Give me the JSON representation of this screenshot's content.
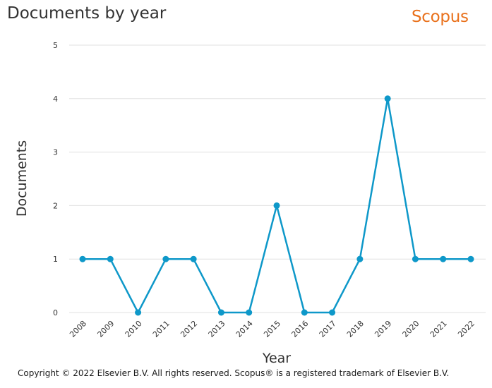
{
  "header": {
    "title": "Documents by year",
    "brand": "Scopus"
  },
  "footer": {
    "copyright": "Copyright © 2022 Elsevier B.V. All rights reserved. Scopus® is a registered trademark of Elsevier B.V."
  },
  "colors": {
    "series": "#0e98c9",
    "grid": "#e0e0e0",
    "brand": "#e9711c",
    "text": "#323232"
  },
  "chart_data": {
    "type": "line",
    "title": "Documents by year",
    "xlabel": "Year",
    "ylabel": "Documents",
    "categories": [
      "2008",
      "2009",
      "2010",
      "2011",
      "2012",
      "2013",
      "2014",
      "2015",
      "2016",
      "2017",
      "2018",
      "2019",
      "2020",
      "2021",
      "2022"
    ],
    "series": [
      {
        "values": [
          1,
          1,
          0,
          1,
          1,
          0,
          0,
          2,
          0,
          0,
          1,
          4,
          1,
          1,
          1
        ]
      }
    ],
    "ylim": [
      0,
      5
    ],
    "yticks": [
      "0",
      "1",
      "2",
      "3",
      "4",
      "5"
    ],
    "grid": true,
    "legend": "none"
  }
}
